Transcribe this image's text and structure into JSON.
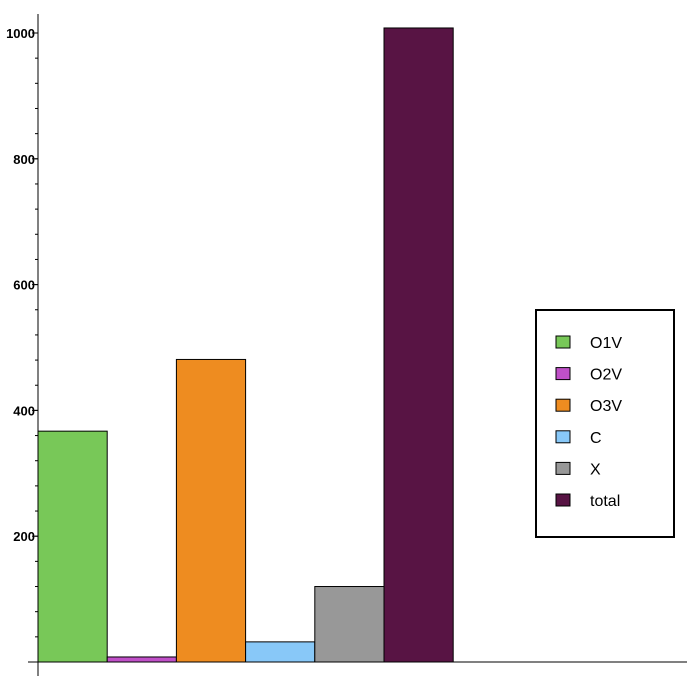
{
  "chart_data": {
    "type": "bar",
    "title": "",
    "xlabel": "",
    "ylabel": "",
    "categories": [
      "O1V",
      "O2V",
      "O3V",
      "C",
      "X",
      "total"
    ],
    "values": [
      367,
      8,
      481,
      32,
      120,
      1008
    ],
    "colors": [
      "#78c858",
      "#c050c8",
      "#ee8c20",
      "#88c8f8",
      "#989898",
      "#581444"
    ],
    "ylim": [
      0,
      1000
    ],
    "yticks": [
      200,
      400,
      600,
      800,
      1000
    ],
    "grid": false,
    "legend": {
      "placement": "right",
      "entries": [
        "O1V",
        "O2V",
        "O3V",
        "C",
        "X",
        "total"
      ]
    }
  }
}
